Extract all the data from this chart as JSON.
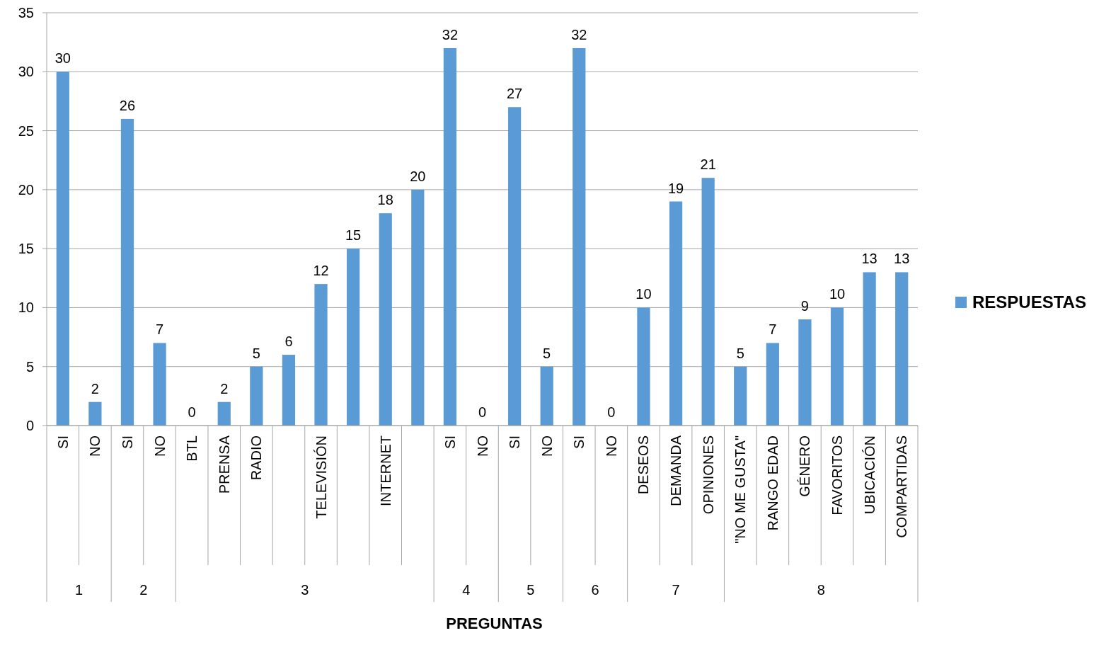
{
  "chart_data": {
    "type": "bar",
    "xlabel": "PREGUNTAS",
    "categories": [
      "SI",
      "NO",
      "SI",
      "NO",
      "BTL",
      "PRENSA",
      "RADIO",
      null,
      "TELEVISIÓN",
      null,
      "INTERNET",
      null,
      "SI",
      "NO",
      "SI",
      "NO",
      "SI",
      "NO",
      "DESEOS",
      "DEMANDA",
      "OPINIONES",
      "\"NO ME GUSTA\"",
      "RANGO EDAD",
      "GÉNERO",
      "FAVORITOS",
      "UBICACIÓN",
      "COMPARTIDAS"
    ],
    "series": [
      {
        "name": "RESPUESTAS",
        "color": "#5b9bd5",
        "values": [
          30,
          2,
          26,
          7,
          0,
          2,
          5,
          6,
          12,
          15,
          18,
          20,
          32,
          0,
          27,
          5,
          32,
          0,
          10,
          19,
          21,
          5,
          7,
          9,
          10,
          13,
          13
        ]
      }
    ],
    "annotations": [
      "1",
      "2",
      "3",
      "4",
      "5",
      "6",
      "7",
      "8"
    ],
    "ylim": [
      0,
      35
    ],
    "yticks": [
      0,
      5,
      10,
      15,
      20,
      25,
      30,
      35
    ],
    "grid": "y",
    "legend": "right",
    "data_labels": true
  }
}
